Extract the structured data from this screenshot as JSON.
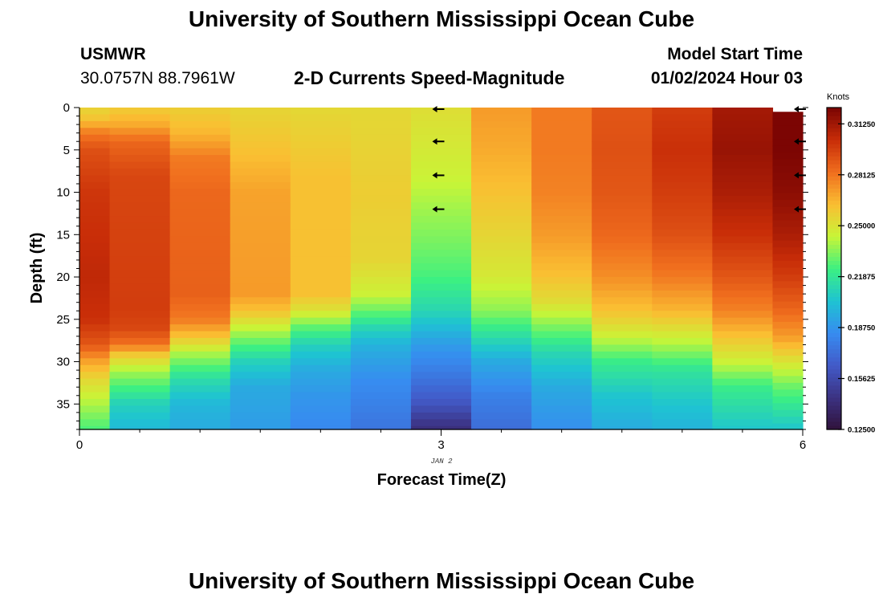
{
  "header": {
    "title": "University of Southern Mississippi Ocean Cube",
    "station": "USMWR",
    "coords": "30.0757N  88.7961W",
    "subtitle": "2-D Currents Speed-Magnitude",
    "model_label": "Model Start Time",
    "model_time": "01/02/2024 Hour 03",
    "footer_title": "University of Southern Mississippi Ocean Cube"
  },
  "chart_data": {
    "type": "heatmap",
    "title": "2-D Currents Speed-Magnitude",
    "xlabel": "Forecast Time(Z)",
    "ylabel": "Depth (ft)",
    "x_date_label": "JAN 2",
    "xlim": [
      0,
      6
    ],
    "ylim": [
      38,
      0
    ],
    "x_ticks": [
      "0",
      "3",
      "6"
    ],
    "y_ticks": [
      "0",
      "5",
      "10",
      "15",
      "20",
      "25",
      "30",
      "35"
    ],
    "y_tick_values": [
      0,
      5,
      10,
      15,
      20,
      25,
      30,
      35
    ],
    "colorbar": {
      "unit": "Knots",
      "min": 0.125,
      "max": 0.3225,
      "tick_labels": [
        "0.31250",
        "0.28125",
        "0.25000",
        "0.21875",
        "0.18750",
        "0.15625",
        "0.12500"
      ],
      "tick_values": [
        0.3125,
        0.28125,
        0.25,
        0.21875,
        0.1875,
        0.15625,
        0.125
      ]
    },
    "columns": [
      {
        "x0": 0.0,
        "x1": 0.25,
        "profile": [
          [
            0,
            0.255
          ],
          [
            1.5,
            0.262
          ],
          [
            3,
            0.28
          ],
          [
            5,
            0.292
          ],
          [
            10,
            0.3
          ],
          [
            20,
            0.305
          ],
          [
            25,
            0.302
          ],
          [
            28,
            0.29
          ],
          [
            30,
            0.27
          ],
          [
            32,
            0.255
          ],
          [
            35,
            0.24
          ],
          [
            38,
            0.225
          ]
        ]
      },
      {
        "x0": 0.25,
        "x1": 0.75,
        "profile": [
          [
            0,
            0.258
          ],
          [
            2,
            0.268
          ],
          [
            4,
            0.285
          ],
          [
            8,
            0.295
          ],
          [
            24,
            0.298
          ],
          [
            26,
            0.295
          ],
          [
            28,
            0.282
          ],
          [
            29,
            0.262
          ],
          [
            31,
            0.24
          ],
          [
            33,
            0.225
          ],
          [
            35,
            0.21
          ],
          [
            38,
            0.2
          ]
        ]
      },
      {
        "x0": 0.75,
        "x1": 1.25,
        "profile": [
          [
            0,
            0.257
          ],
          [
            3,
            0.265
          ],
          [
            6,
            0.28
          ],
          [
            10,
            0.285
          ],
          [
            22,
            0.287
          ],
          [
            25,
            0.28
          ],
          [
            27,
            0.262
          ],
          [
            29,
            0.24
          ],
          [
            32,
            0.215
          ],
          [
            35,
            0.2
          ],
          [
            38,
            0.195
          ]
        ]
      },
      {
        "x0": 1.25,
        "x1": 1.75,
        "profile": [
          [
            0,
            0.255
          ],
          [
            5,
            0.262
          ],
          [
            10,
            0.27
          ],
          [
            22,
            0.272
          ],
          [
            24,
            0.262
          ],
          [
            27,
            0.235
          ],
          [
            30,
            0.21
          ],
          [
            33,
            0.195
          ],
          [
            38,
            0.19
          ]
        ]
      },
      {
        "x0": 1.75,
        "x1": 2.25,
        "profile": [
          [
            0,
            0.254
          ],
          [
            8,
            0.262
          ],
          [
            22,
            0.262
          ],
          [
            24,
            0.25
          ],
          [
            26,
            0.228
          ],
          [
            28,
            0.21
          ],
          [
            31,
            0.195
          ],
          [
            34,
            0.188
          ],
          [
            38,
            0.183
          ]
        ]
      },
      {
        "x0": 2.25,
        "x1": 2.75,
        "profile": [
          [
            0,
            0.254
          ],
          [
            10,
            0.258
          ],
          [
            18,
            0.255
          ],
          [
            22,
            0.245
          ],
          [
            24,
            0.23
          ],
          [
            26,
            0.212
          ],
          [
            28,
            0.198
          ],
          [
            32,
            0.185
          ],
          [
            38,
            0.175
          ]
        ]
      },
      {
        "x0": 2.75,
        "x1": 3.25,
        "profile": [
          [
            0,
            0.252
          ],
          [
            8,
            0.245
          ],
          [
            12,
            0.238
          ],
          [
            16,
            0.232
          ],
          [
            20,
            0.225
          ],
          [
            24,
            0.212
          ],
          [
            28,
            0.19
          ],
          [
            32,
            0.175
          ],
          [
            35,
            0.162
          ],
          [
            38,
            0.142
          ]
        ]
      },
      {
        "x0": 3.25,
        "x1": 3.75,
        "profile": [
          [
            0,
            0.272
          ],
          [
            5,
            0.268
          ],
          [
            10,
            0.262
          ],
          [
            15,
            0.255
          ],
          [
            20,
            0.248
          ],
          [
            24,
            0.235
          ],
          [
            27,
            0.215
          ],
          [
            30,
            0.195
          ],
          [
            34,
            0.18
          ],
          [
            38,
            0.172
          ]
        ]
      },
      {
        "x0": 3.75,
        "x1": 4.25,
        "profile": [
          [
            0,
            0.28
          ],
          [
            5,
            0.28
          ],
          [
            10,
            0.278
          ],
          [
            15,
            0.272
          ],
          [
            20,
            0.262
          ],
          [
            23,
            0.252
          ],
          [
            26,
            0.232
          ],
          [
            29,
            0.212
          ],
          [
            33,
            0.195
          ],
          [
            38,
            0.185
          ]
        ]
      },
      {
        "x0": 4.25,
        "x1": 4.75,
        "profile": [
          [
            0,
            0.29
          ],
          [
            5,
            0.292
          ],
          [
            10,
            0.29
          ],
          [
            15,
            0.285
          ],
          [
            20,
            0.275
          ],
          [
            24,
            0.262
          ],
          [
            27,
            0.245
          ],
          [
            30,
            0.222
          ],
          [
            34,
            0.205
          ],
          [
            38,
            0.195
          ]
        ]
      },
      {
        "x0": 4.75,
        "x1": 5.25,
        "profile": [
          [
            0,
            0.298
          ],
          [
            5,
            0.302
          ],
          [
            10,
            0.298
          ],
          [
            15,
            0.292
          ],
          [
            20,
            0.28
          ],
          [
            24,
            0.265
          ],
          [
            28,
            0.24
          ],
          [
            31,
            0.218
          ],
          [
            35,
            0.205
          ],
          [
            38,
            0.198
          ]
        ]
      },
      {
        "x0": 5.25,
        "x1": 5.75,
        "profile": [
          [
            0,
            0.312
          ],
          [
            5,
            0.315
          ],
          [
            10,
            0.31
          ],
          [
            15,
            0.302
          ],
          [
            20,
            0.29
          ],
          [
            24,
            0.278
          ],
          [
            27,
            0.262
          ],
          [
            30,
            0.245
          ],
          [
            33,
            0.222
          ],
          [
            36,
            0.212
          ],
          [
            38,
            0.205
          ]
        ]
      },
      {
        "x0": 5.75,
        "x1": 6.0,
        "profile": [
          [
            0.5,
            0.322
          ],
          [
            5,
            0.322
          ],
          [
            10,
            0.318
          ],
          [
            15,
            0.31
          ],
          [
            20,
            0.298
          ],
          [
            24,
            0.285
          ],
          [
            27,
            0.272
          ],
          [
            30,
            0.25
          ],
          [
            33,
            0.23
          ],
          [
            36,
            0.215
          ],
          [
            38,
            0.205
          ]
        ]
      }
    ],
    "arrows": [
      {
        "time": 3,
        "depths": [
          0,
          4,
          8,
          12
        ],
        "direction": "west"
      },
      {
        "time": 6,
        "depths": [
          0,
          4,
          8,
          12
        ],
        "direction": "west"
      }
    ],
    "legend": "colorbar-right"
  }
}
